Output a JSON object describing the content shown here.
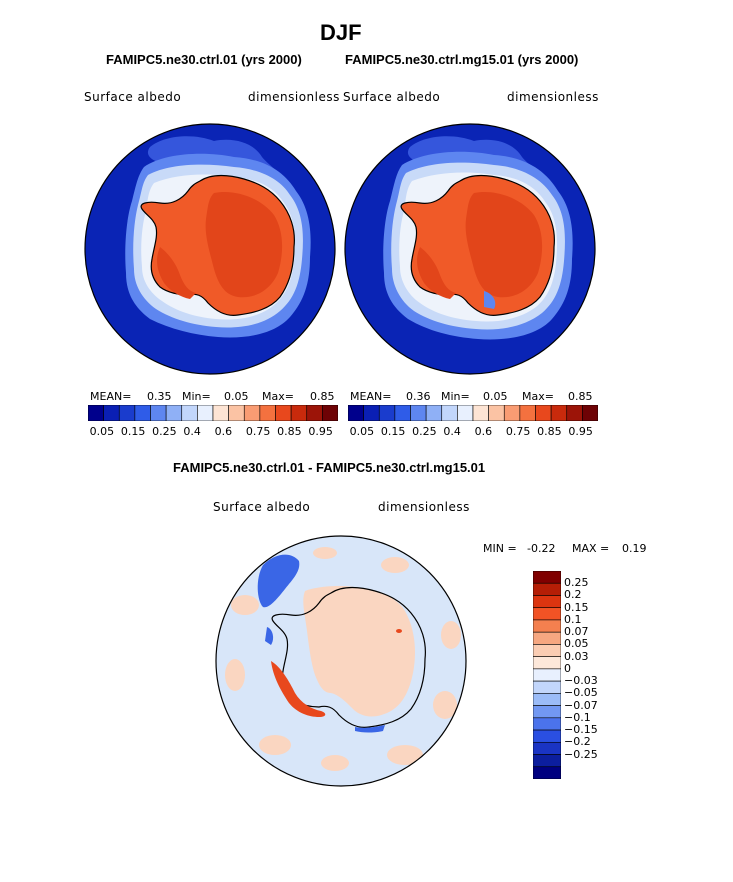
{
  "season": "DJF",
  "units_label": "dimensionless",
  "variable_label": "Surface albedo",
  "panel_left": {
    "title": "FAMIPC5.ne30.ctrl.01 (yrs 2000)",
    "mean_label": "MEAN=",
    "mean": "0.35",
    "min_label": "Min=",
    "min": "0.05",
    "max_label": "Max=",
    "max": "0.85"
  },
  "panel_right": {
    "title": "FAMIPC5.ne30.ctrl.mg15.01 (yrs 2000)",
    "mean_label": "MEAN=",
    "mean": "0.36",
    "min_label": "Min=",
    "min": "0.05",
    "max_label": "Max=",
    "max": "0.85"
  },
  "abs_colorbar": {
    "colors": [
      "#00008c",
      "#0a1fb4",
      "#1a3ccd",
      "#2f5ce8",
      "#5e86f0",
      "#8fb0f6",
      "#c2d6fb",
      "#e8f0fe",
      "#fde4d4",
      "#fbc3a4",
      "#f99c73",
      "#f4713f",
      "#e8481d",
      "#c92a0c",
      "#9c1408",
      "#6e0205"
    ],
    "tick_labels": [
      "0.05",
      "0.15",
      "0.25",
      "0.4",
      "0.6",
      "0.75",
      "0.85",
      "0.95"
    ]
  },
  "diff_panel": {
    "title": "FAMIPC5.ne30.ctrl.01 - FAMIPC5.ne30.ctrl.mg15.01",
    "min_label": "MIN =",
    "min": "-0.22",
    "max_label": "MAX =",
    "max": "0.19"
  },
  "diff_colorbar": {
    "colors": [
      "#800000",
      "#b51e06",
      "#dc3510",
      "#f25325",
      "#f4804f",
      "#f6a781",
      "#fbcdb3",
      "#fde8da",
      "#e8f0fe",
      "#c2d6fb",
      "#9bbcf8",
      "#7298f2",
      "#4b73ec",
      "#2a4fe2",
      "#1a34c4",
      "#0c1e9e",
      "#000080"
    ],
    "tick_labels": [
      "0.25",
      "0.2",
      "0.15",
      "0.1",
      "0.07",
      "0.05",
      "0.03",
      "0",
      "−0.03",
      "−0.05",
      "−0.07",
      "−0.1",
      "−0.15",
      "−0.2",
      "−0.25"
    ]
  },
  "map_colors": {
    "ocean": "#0a24b5",
    "ice_light": "#c8daf8",
    "ice_white": "#eef3fb",
    "land": "#f05a28",
    "land_dark": "#e2451a",
    "diff_bg": "#d8e6f9",
    "diff_pos": "#fad6c1",
    "diff_strong_pos": "#e8481d",
    "diff_neg": "#3a66e6"
  }
}
